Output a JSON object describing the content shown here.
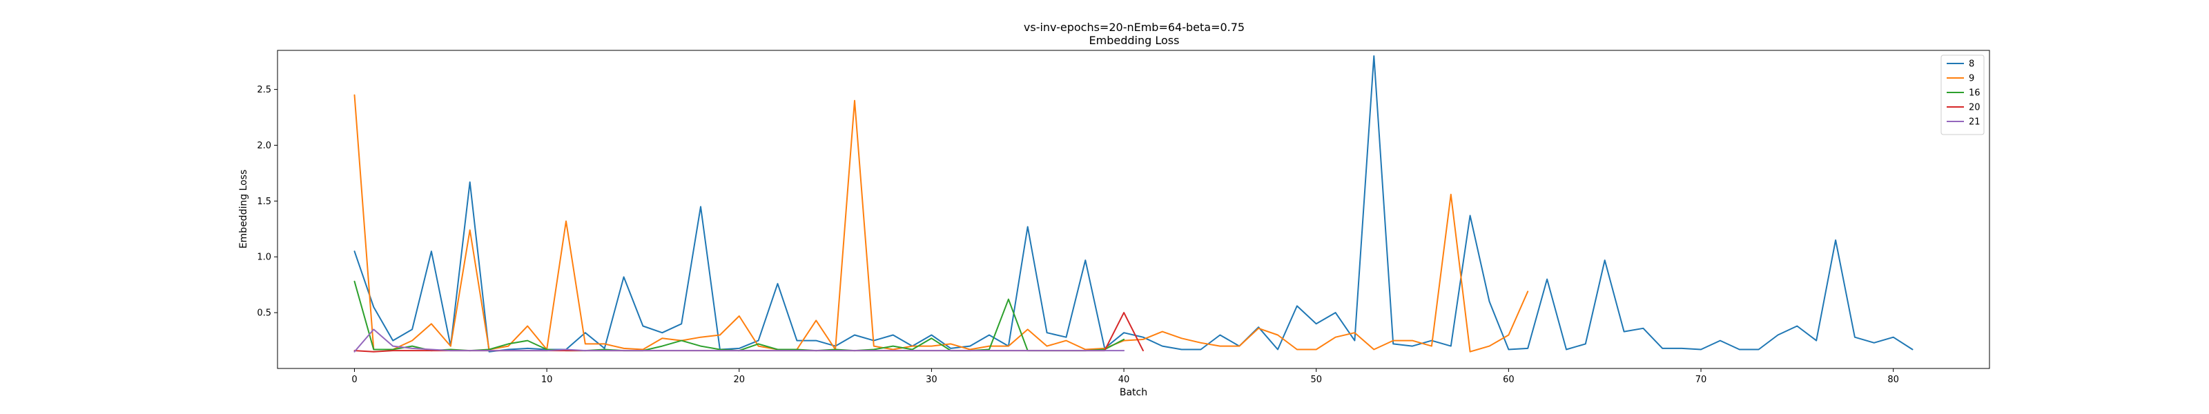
{
  "chart_data": {
    "type": "line",
    "title": "vs-inv-epochs=20-nEmb=64-beta=0.75",
    "subtitle": "Embedding Loss",
    "xlabel": "Batch",
    "ylabel": "Embedding Loss",
    "xlim": [
      -4,
      85
    ],
    "ylim": [
      0,
      2.85
    ],
    "xticks": [
      0,
      10,
      20,
      30,
      40,
      50,
      60,
      70,
      80
    ],
    "yticks": [
      0.5,
      1.0,
      1.5,
      2.0,
      2.5
    ],
    "ytick_labels": [
      "0.5",
      "1.0",
      "1.5",
      "2.0",
      "2.5"
    ],
    "grid": false,
    "legend_position": "top-right",
    "series": [
      {
        "name": "8",
        "color": "#1f77b4",
        "values": [
          1.05,
          0.55,
          0.25,
          0.35,
          1.05,
          0.2,
          1.67,
          0.15,
          0.17,
          0.18,
          0.17,
          0.17,
          0.32,
          0.18,
          0.82,
          0.38,
          0.32,
          0.4,
          1.45,
          0.17,
          0.18,
          0.25,
          0.76,
          0.25,
          0.25,
          0.2,
          0.3,
          0.25,
          0.3,
          0.2,
          0.3,
          0.18,
          0.2,
          0.3,
          0.2,
          1.27,
          0.32,
          0.28,
          0.97,
          0.18,
          0.32,
          0.28,
          0.2,
          0.17,
          0.17,
          0.3,
          0.2,
          0.37,
          0.17,
          0.56,
          0.4,
          0.5,
          0.25,
          2.8,
          0.22,
          0.2,
          0.25,
          0.2,
          1.37,
          0.6,
          0.17,
          0.18,
          0.8,
          0.17,
          0.22,
          0.97,
          0.33,
          0.36,
          0.18,
          0.18,
          0.17,
          0.25,
          0.17,
          0.17,
          0.3,
          0.38,
          0.25,
          1.15,
          0.28,
          0.23,
          0.28,
          0.17
        ]
      },
      {
        "name": "9",
        "color": "#ff7f0e",
        "values": [
          2.45,
          0.17,
          0.17,
          0.25,
          0.4,
          0.2,
          1.24,
          0.17,
          0.2,
          0.38,
          0.17,
          1.32,
          0.22,
          0.22,
          0.18,
          0.17,
          0.27,
          0.25,
          0.28,
          0.3,
          0.47,
          0.2,
          0.17,
          0.17,
          0.43,
          0.17,
          2.4,
          0.2,
          0.17,
          0.2,
          0.2,
          0.22,
          0.17,
          0.2,
          0.2,
          0.35,
          0.2,
          0.25,
          0.17,
          0.18,
          0.25,
          0.26,
          0.33,
          0.27,
          0.23,
          0.2,
          0.2,
          0.36,
          0.3,
          0.17,
          0.17,
          0.28,
          0.32,
          0.17,
          0.25,
          0.25,
          0.2,
          1.56,
          0.15,
          0.2,
          0.3,
          0.69
        ]
      },
      {
        "name": "16",
        "color": "#2ca02c",
        "values": [
          0.78,
          0.17,
          0.17,
          0.2,
          0.16,
          0.17,
          0.16,
          0.17,
          0.22,
          0.25,
          0.17,
          0.16,
          0.16,
          0.17,
          0.16,
          0.16,
          0.2,
          0.25,
          0.2,
          0.17,
          0.16,
          0.22,
          0.17,
          0.17,
          0.16,
          0.17,
          0.16,
          0.17,
          0.2,
          0.17,
          0.27,
          0.16,
          0.16,
          0.17,
          0.62,
          0.16,
          0.16,
          0.16,
          0.16,
          0.17,
          0.26
        ]
      },
      {
        "name": "20",
        "color": "#d62728",
        "values": [
          0.16,
          0.15,
          0.16,
          0.16,
          0.16,
          0.16,
          0.16,
          0.16,
          0.16,
          0.16,
          0.16,
          0.16,
          0.16,
          0.16,
          0.16,
          0.16,
          0.16,
          0.16,
          0.16,
          0.16,
          0.16,
          0.16,
          0.16,
          0.16,
          0.16,
          0.16,
          0.16,
          0.16,
          0.16,
          0.16,
          0.16,
          0.16,
          0.16,
          0.16,
          0.16,
          0.16,
          0.16,
          0.16,
          0.16,
          0.16,
          0.5,
          0.16
        ]
      },
      {
        "name": "21",
        "color": "#9467bd",
        "values": [
          0.15,
          0.35,
          0.2,
          0.18,
          0.17,
          0.16,
          0.16,
          0.16,
          0.16,
          0.16,
          0.16,
          0.17,
          0.16,
          0.16,
          0.16,
          0.16,
          0.16,
          0.16,
          0.16,
          0.16,
          0.16,
          0.16,
          0.16,
          0.16,
          0.16,
          0.16,
          0.16,
          0.16,
          0.16,
          0.16,
          0.16,
          0.16,
          0.16,
          0.16,
          0.16,
          0.16,
          0.16,
          0.16,
          0.16,
          0.16,
          0.16
        ]
      }
    ]
  }
}
